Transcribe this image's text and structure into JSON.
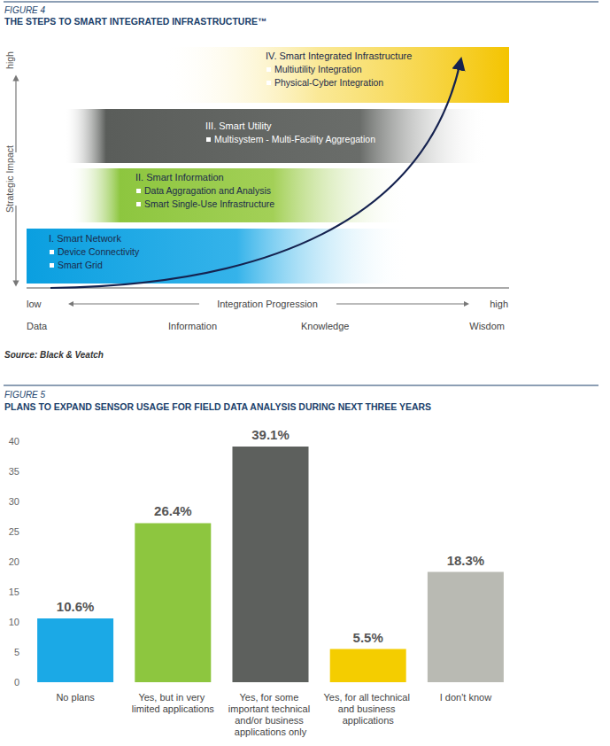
{
  "figure4": {
    "caption": "FIGURE 4",
    "title": "THE STEPS TO SMART INTEGRATED INFRASTRUCTURE™",
    "y_axis": {
      "label": "Strategic Impact",
      "high": "high"
    },
    "x_axis": {
      "low": "low",
      "label": "Integration Progression",
      "high": "high",
      "stages": [
        "Data",
        "Information",
        "Knowledge",
        "Wisdom"
      ]
    },
    "steps": [
      {
        "title": "I. Smart Network",
        "items": [
          "Device Connectivity",
          "Smart Grid"
        ]
      },
      {
        "title": "II. Smart Information",
        "items": [
          "Data Aggragation and Analysis",
          "Smart Single-Use Infrastructure"
        ]
      },
      {
        "title": "III. Smart Utility",
        "items": [
          "Multisystem - Multi-Facility Aggregation"
        ]
      },
      {
        "title": "IV. Smart Integrated Infrastructure",
        "items": [
          "Multiutility Integration",
          "Physical-Cyber Integration"
        ]
      }
    ],
    "source": "Source: Black & Veatch"
  },
  "chart_data": {
    "type": "bar",
    "caption": "FIGURE 5",
    "title": "PLANS TO EXPAND SENSOR USAGE FOR FIELD DATA ANALYSIS DURING NEXT THREE YEARS",
    "categories": [
      "No plans",
      "Yes, but in very limited applications",
      "Yes, for some important technical and/or business applications only",
      "Yes, for all technical and business applications",
      "I don't know"
    ],
    "values": [
      10.6,
      26.4,
      39.1,
      5.5,
      18.3
    ],
    "value_labels": [
      "10.6%",
      "26.4%",
      "39.1%",
      "5.5%",
      "18.3%"
    ],
    "colors": [
      "#1ba9e6",
      "#8dc63f",
      "#5d605d",
      "#f4cd00",
      "#b9bab3"
    ],
    "ylim": [
      0,
      40
    ],
    "yticks": [
      0,
      5,
      10,
      15,
      20,
      25,
      30,
      35,
      40
    ],
    "grid": false,
    "data_labels": true
  }
}
